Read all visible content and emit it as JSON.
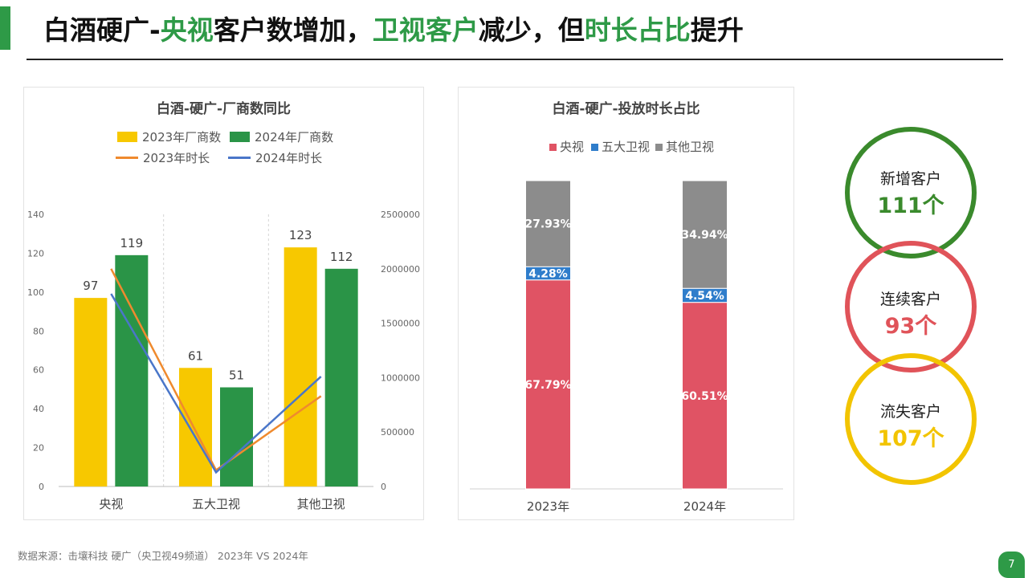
{
  "header": {
    "title_parts": [
      {
        "text": "白酒硬广-",
        "hl": false
      },
      {
        "text": "央视",
        "hl": true
      },
      {
        "text": "客户数增加，",
        "hl": false
      },
      {
        "text": "卫视客户",
        "hl": true
      },
      {
        "text": "减少，但",
        "hl": false
      },
      {
        "text": "时长占比",
        "hl": true
      },
      {
        "text": "提升",
        "hl": false
      }
    ],
    "accent_color": "#2e9a47"
  },
  "left_chart": {
    "title": "白酒-硬广-厂商数同比",
    "legend": {
      "bar_2023": "2023年厂商数",
      "bar_2024": "2024年厂商数",
      "line_2023": "2023年时长",
      "line_2024": "2024年时长"
    }
  },
  "right_chart": {
    "title": "白酒-硬广-投放时长占比",
    "legend": {
      "cctv": "央视",
      "five": "五大卫视",
      "other": "其他卫视"
    }
  },
  "chart_data": [
    {
      "type": "bar",
      "title": "白酒-硬广-厂商数同比",
      "categories": [
        "央视",
        "五大卫视",
        "其他卫视"
      ],
      "y_left_lim": [
        0,
        140
      ],
      "y_left_ticks": [
        "0",
        "20",
        "40",
        "60",
        "80",
        "100",
        "120",
        "140"
      ],
      "y_right_lim": [
        0,
        2500000
      ],
      "y_right_ticks": [
        "0",
        "500000",
        "1000000",
        "1500000",
        "2000000",
        "2500000"
      ],
      "series": [
        {
          "name": "2023年厂商数",
          "kind": "bar",
          "axis": "left",
          "color": "#f7c800",
          "values": [
            97,
            61,
            123
          ]
        },
        {
          "name": "2024年厂商数",
          "kind": "bar",
          "axis": "left",
          "color": "#2a9447",
          "values": [
            119,
            51,
            112
          ]
        },
        {
          "name": "2023年时长",
          "kind": "line",
          "axis": "right",
          "color": "#ef8a2e",
          "values": [
            2000000,
            150000,
            830000
          ]
        },
        {
          "name": "2024年时长",
          "kind": "line",
          "axis": "right",
          "color": "#4a76c9",
          "values": [
            1770000,
            130000,
            1010000
          ]
        }
      ],
      "legend_position": "top",
      "grid": false
    },
    {
      "type": "bar",
      "stacked": true,
      "title": "白酒-硬广-投放时长占比",
      "categories": [
        "2023年",
        "2024年"
      ],
      "ylim": [
        0,
        100
      ],
      "series": [
        {
          "name": "央视",
          "color": "#e05364",
          "values": [
            67.79,
            60.51
          ],
          "labels": [
            "67.79%",
            "60.51%"
          ]
        },
        {
          "name": "五大卫视",
          "color": "#2f7dcb",
          "values": [
            4.28,
            4.54
          ],
          "labels": [
            "4.28%",
            "4.54%"
          ]
        },
        {
          "name": "其他卫视",
          "color": "#8c8c8c",
          "values": [
            27.93,
            34.94
          ],
          "labels": [
            "27.93%",
            "34.94%"
          ]
        }
      ],
      "legend_position": "top",
      "grid": false
    }
  ],
  "stats": [
    {
      "label": "新增客户",
      "value": "111个",
      "color": "#3a8a2c"
    },
    {
      "label": "连续客户",
      "value": "93个",
      "color": "#e05359"
    },
    {
      "label": "流失客户",
      "value": "107个",
      "color": "#f2c400"
    }
  ],
  "footer": {
    "source": "数据来源：击壤科技  硬广（央卫视49频道） 2023年 VS 2024年",
    "page_number": "7"
  }
}
